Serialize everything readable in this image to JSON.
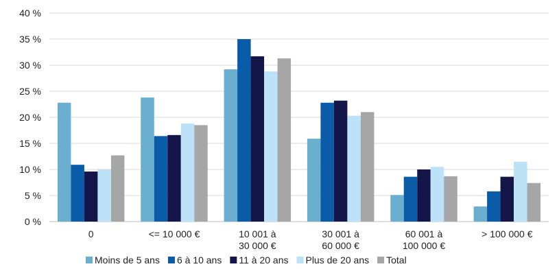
{
  "chart_data": {
    "type": "bar",
    "categories": [
      [
        "0"
      ],
      [
        "<= 10 000 €"
      ],
      [
        "10 001 à",
        "30 000 €"
      ],
      [
        "30 001 à",
        "60 000 €"
      ],
      [
        "60 001 à",
        "100 000 €"
      ],
      [
        "> 100 000 €"
      ]
    ],
    "series": [
      {
        "name": "Moins de 5 ans",
        "color": "#6aafd0",
        "values": [
          22.8,
          23.8,
          29.2,
          15.9,
          5.1,
          2.9
        ]
      },
      {
        "name": "6 à 10 ans",
        "color": "#0a5ca8",
        "values": [
          10.9,
          16.4,
          35.0,
          22.8,
          8.6,
          5.8
        ]
      },
      {
        "name": "11 à 20 ans",
        "color": "#14164a",
        "values": [
          9.6,
          16.6,
          31.7,
          23.2,
          10.0,
          8.6
        ]
      },
      {
        "name": "Plus de 20 ans",
        "color": "#bde2f7",
        "values": [
          10.0,
          18.8,
          28.8,
          20.3,
          10.5,
          11.5
        ]
      },
      {
        "name": "Total",
        "color": "#a6a6a6",
        "values": [
          12.7,
          18.5,
          31.3,
          21.0,
          8.7,
          7.4
        ]
      }
    ],
    "ylim": [
      0,
      40
    ],
    "yticks": [
      0,
      5,
      10,
      15,
      20,
      25,
      30,
      35,
      40
    ],
    "ytick_suffix": " %",
    "grid": true,
    "legend": "bottom"
  }
}
